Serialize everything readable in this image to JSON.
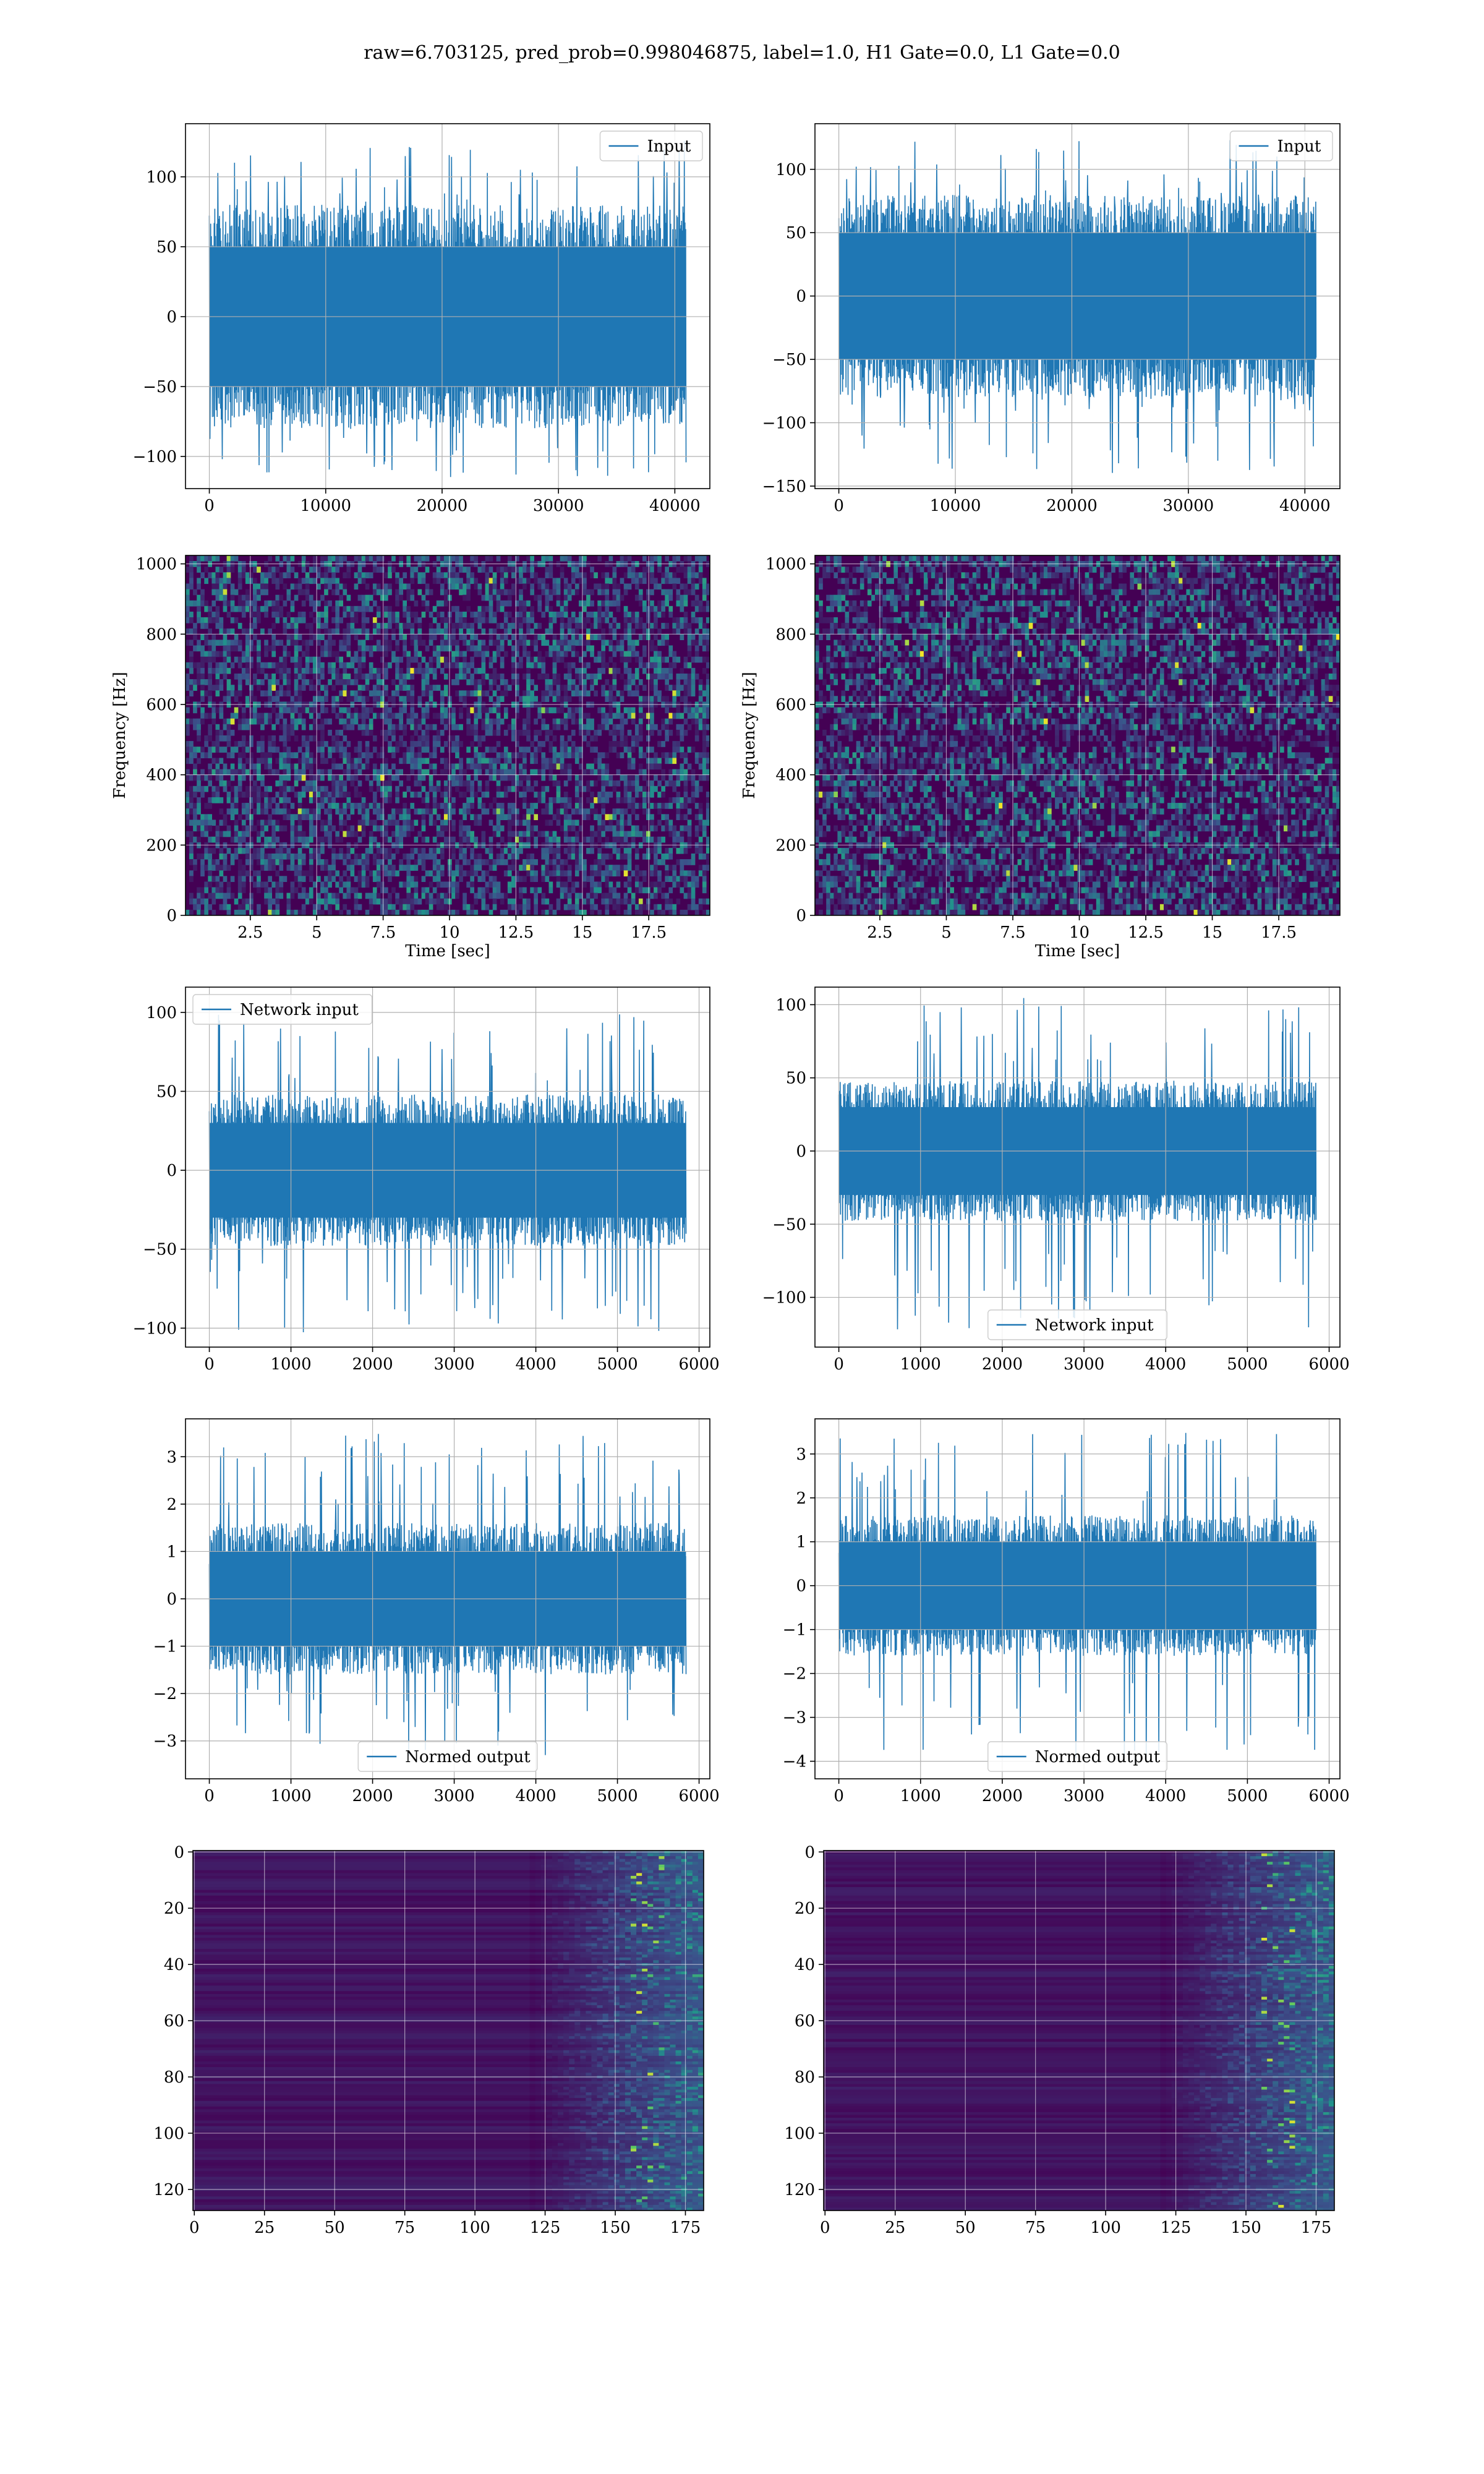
{
  "figure": {
    "title": "raw=6.703125, pred_prob=0.998046875, label=1.0, H1 Gate=0.0, L1 Gate=0.0"
  },
  "colors": {
    "line": "#1f77b4",
    "grid": "#b0b0b0",
    "viridis_low": "#440154",
    "viridis_mid": "#21918c",
    "viridis_high": "#fde725"
  },
  "chart_data": [
    {
      "id": "input-left",
      "type": "line",
      "series": [
        {
          "name": "Input",
          "x_range": [
            0,
            40960
          ],
          "y_envelope": [
            -118,
            128
          ],
          "y_core": [
            -50,
            50
          ]
        }
      ],
      "xlim": [
        -2048,
        43008
      ],
      "ylim": [
        -123,
        138
      ],
      "xticks": [
        0,
        10000,
        20000,
        30000,
        40000
      ],
      "yticks": [
        -100,
        -50,
        0,
        50,
        100
      ],
      "legend": {
        "position": "upper right"
      },
      "grid": true
    },
    {
      "id": "input-right",
      "type": "line",
      "series": [
        {
          "name": "Input",
          "x_range": [
            0,
            40960
          ],
          "y_envelope": [
            -140,
            124
          ],
          "y_core": [
            -50,
            50
          ]
        }
      ],
      "xlim": [
        -2048,
        43008
      ],
      "ylim": [
        -152,
        136
      ],
      "xticks": [
        0,
        10000,
        20000,
        30000,
        40000
      ],
      "yticks": [
        -150,
        -100,
        -50,
        0,
        50,
        100
      ],
      "legend": {
        "position": "upper right"
      },
      "grid": true
    },
    {
      "id": "spectrogram-left",
      "type": "heatmap",
      "xlabel": "Time [sec]",
      "ylabel": "Frequency [Hz]",
      "xlim": [
        0.06,
        19.8
      ],
      "ylim": [
        0,
        1024
      ],
      "xticks": [
        2.5,
        5.0,
        7.5,
        10.0,
        12.5,
        15.0,
        17.5
      ],
      "yticks": [
        0,
        200,
        400,
        600,
        800,
        1000
      ],
      "colormap": "viridis",
      "grid": true
    },
    {
      "id": "spectrogram-right",
      "type": "heatmap",
      "xlabel": "Time [sec]",
      "ylabel": "Frequency [Hz]",
      "xlim": [
        0.06,
        19.8
      ],
      "ylim": [
        0,
        1024
      ],
      "xticks": [
        2.5,
        5.0,
        7.5,
        10.0,
        12.5,
        15.0,
        17.5
      ],
      "yticks": [
        0,
        200,
        400,
        600,
        800,
        1000
      ],
      "colormap": "viridis",
      "grid": true
    },
    {
      "id": "network-input-left",
      "type": "line",
      "series": [
        {
          "name": "Network input",
          "x_range": [
            0,
            5840
          ],
          "y_envelope": [
            -103,
            100
          ],
          "y_core": [
            -30,
            30
          ]
        }
      ],
      "xlim": [
        -292,
        6132
      ],
      "ylim": [
        -112,
        116
      ],
      "xticks": [
        0,
        1000,
        2000,
        3000,
        4000,
        5000,
        6000
      ],
      "yticks": [
        -100,
        -50,
        0,
        50,
        100
      ],
      "legend": {
        "position": "upper left"
      },
      "grid": true
    },
    {
      "id": "network-input-right",
      "type": "line",
      "series": [
        {
          "name": "Network input",
          "x_range": [
            0,
            5840
          ],
          "y_envelope": [
            -122,
            106
          ],
          "y_core": [
            -30,
            30
          ]
        }
      ],
      "xlim": [
        -292,
        6132
      ],
      "ylim": [
        -134,
        112
      ],
      "xticks": [
        0,
        1000,
        2000,
        3000,
        4000,
        5000,
        6000
      ],
      "yticks": [
        -100,
        -50,
        0,
        50,
        100
      ],
      "legend": {
        "position": "lower center"
      },
      "grid": true
    },
    {
      "id": "normed-output-left",
      "type": "line",
      "series": [
        {
          "name": "Normed output",
          "x_range": [
            0,
            5840
          ],
          "y_envelope": [
            -3.4,
            3.5
          ],
          "y_core": [
            -1.0,
            1.0
          ]
        }
      ],
      "xlim": [
        -292,
        6132
      ],
      "ylim": [
        -3.8,
        3.8
      ],
      "xticks": [
        0,
        1000,
        2000,
        3000,
        4000,
        5000,
        6000
      ],
      "yticks": [
        -3,
        -2,
        -1,
        0,
        1,
        2,
        3
      ],
      "legend": {
        "position": "lower center"
      },
      "grid": true
    },
    {
      "id": "normed-output-right",
      "type": "line",
      "series": [
        {
          "name": "Normed output",
          "x_range": [
            0,
            5840
          ],
          "y_envelope": [
            -4.0,
            3.5
          ],
          "y_core": [
            -1.0,
            1.0
          ]
        }
      ],
      "xlim": [
        -292,
        6132
      ],
      "ylim": [
        -4.4,
        3.8
      ],
      "xticks": [
        0,
        1000,
        2000,
        3000,
        4000,
        5000,
        6000
      ],
      "yticks": [
        -4,
        -3,
        -2,
        -1,
        0,
        1,
        2,
        3
      ],
      "legend": {
        "position": "lower center"
      },
      "grid": true
    },
    {
      "id": "feature-map-left",
      "type": "heatmap",
      "xlim": [
        -0.5,
        181.5
      ],
      "ylim": [
        127.5,
        -0.5
      ],
      "xticks": [
        0,
        25,
        50,
        75,
        100,
        125,
        150,
        175
      ],
      "yticks": [
        0,
        20,
        40,
        60,
        80,
        100,
        120
      ],
      "colormap": "viridis",
      "grid": true
    },
    {
      "id": "feature-map-right",
      "type": "heatmap",
      "xlim": [
        -0.5,
        181.5
      ],
      "ylim": [
        127.5,
        -0.5
      ],
      "xticks": [
        0,
        25,
        50,
        75,
        100,
        125,
        150,
        175
      ],
      "yticks": [
        0,
        20,
        40,
        60,
        80,
        100,
        120
      ],
      "colormap": "viridis",
      "grid": true
    }
  ]
}
